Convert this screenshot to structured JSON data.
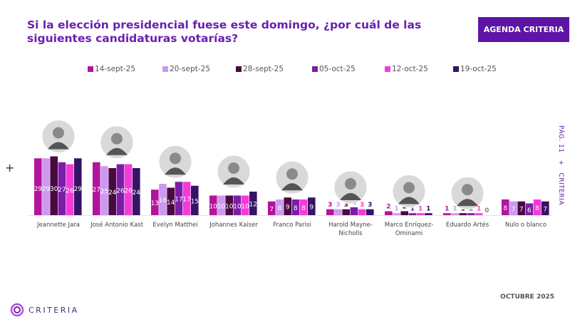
{
  "header": {
    "title": "Si la elección presidencial fuese este domingo, ¿por cuál de las siguientes candidaturas votarías?",
    "badge": "AGENDA CRITERIA"
  },
  "side": {
    "page": "PÁG. 11",
    "plus": "+",
    "brand": "CRITERIA"
  },
  "left_plus": "+",
  "footer": {
    "date": "OCTUBRE 2025",
    "logo": "CRITERIA"
  },
  "chart_data": {
    "type": "bar",
    "categories": [
      "Jeannette Jara",
      "José Antonio Kast",
      "Evelyn Matthei",
      "Johannes Kaiser",
      "Franco Parisi",
      "Harold Mayne-Nicholls",
      "Marco Enríquez-Ominami",
      "Eduardo Artés",
      "Nulo o blanco"
    ],
    "series": [
      {
        "name": "14-sept-25",
        "color": "#b3149c",
        "values": [
          29,
          27,
          13,
          10,
          7,
          3,
          2,
          1,
          8
        ]
      },
      {
        "name": "20-sept-25",
        "color": "#cc99f0",
        "values": [
          29,
          25,
          16,
          10,
          8,
          3,
          1,
          1,
          7
        ]
      },
      {
        "name": "28-sept-25",
        "color": "#4a0a40",
        "values": [
          30,
          24,
          14,
          10,
          9,
          3,
          2,
          1,
          7
        ]
      },
      {
        "name": "05-oct-25",
        "color": "#7a1ea8",
        "values": [
          27,
          26,
          17,
          10,
          8,
          4,
          1,
          1,
          6
        ]
      },
      {
        "name": "12-oct-25",
        "color": "#f43bd8",
        "values": [
          26,
          26,
          17,
          10,
          8,
          3,
          1,
          1,
          8
        ]
      },
      {
        "name": "19-oct-25",
        "color": "#351466",
        "values": [
          29,
          24,
          15,
          12,
          9,
          3,
          1,
          0,
          7
        ]
      }
    ],
    "photos": [
      "Jeannette Jara",
      "José Antonio Kast",
      "Evelyn Matthei",
      "Johannes Kaiser",
      "Franco Parisi",
      "Harold Mayne-Nicholls",
      "Marco Enríquez-Ominami",
      "Eduardo Artés"
    ],
    "legend_placement": "top",
    "grid": false
  }
}
